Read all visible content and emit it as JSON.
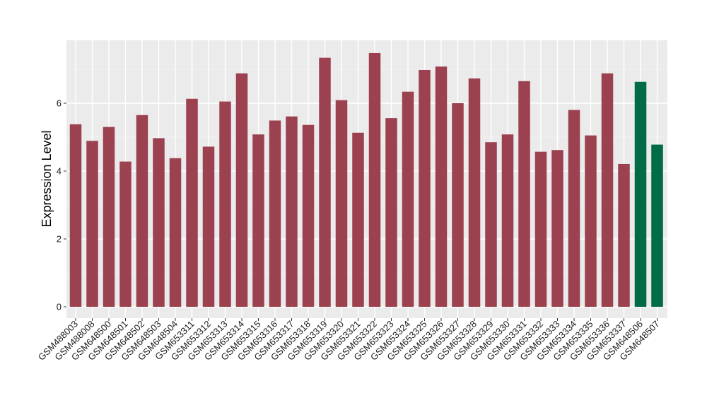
{
  "chart_data": {
    "type": "bar",
    "title": "",
    "xlabel": "",
    "ylabel": "Expression Level",
    "ylim": [
      0,
      7.85
    ],
    "yticks": [
      0,
      2,
      4,
      6
    ],
    "grid": true,
    "legend": "none",
    "colors": {
      "panel_background": "#ebebeb",
      "grid_major": "#ffffff",
      "series_a": "#9c4150",
      "series_b": "#006b45"
    },
    "categories": [
      "GSM488003",
      "GSM488008",
      "GSM648500",
      "GSM648501",
      "GSM648502",
      "GSM648503",
      "GSM648504",
      "GSM653311",
      "GSM653312",
      "GSM653313",
      "GSM653314",
      "GSM653315",
      "GSM653316",
      "GSM653317",
      "GSM653318",
      "GSM653319",
      "GSM653320",
      "GSM653321",
      "GSM653322",
      "GSM653323",
      "GSM653324",
      "GSM653325",
      "GSM653326",
      "GSM653327",
      "GSM653328",
      "GSM653329",
      "GSM653330",
      "GSM653331",
      "GSM653332",
      "GSM653333",
      "GSM653334",
      "GSM653335",
      "GSM653336",
      "GSM653337",
      "GSM648506",
      "GSM648507"
    ],
    "values": [
      5.38,
      4.89,
      5.3,
      4.28,
      5.65,
      4.97,
      4.38,
      6.13,
      4.72,
      6.05,
      6.88,
      5.08,
      5.49,
      5.61,
      5.36,
      7.34,
      6.09,
      5.13,
      7.48,
      5.56,
      6.34,
      6.98,
      7.08,
      6.0,
      6.73,
      4.85,
      5.08,
      6.65,
      4.57,
      4.62,
      5.8,
      5.05,
      6.88,
      4.21,
      6.63,
      4.78
    ],
    "bar_groups": [
      "a",
      "a",
      "a",
      "a",
      "a",
      "a",
      "a",
      "a",
      "a",
      "a",
      "a",
      "a",
      "a",
      "a",
      "a",
      "a",
      "a",
      "a",
      "a",
      "a",
      "a",
      "a",
      "a",
      "a",
      "a",
      "a",
      "a",
      "a",
      "a",
      "a",
      "a",
      "a",
      "a",
      "a",
      "b",
      "b"
    ]
  }
}
